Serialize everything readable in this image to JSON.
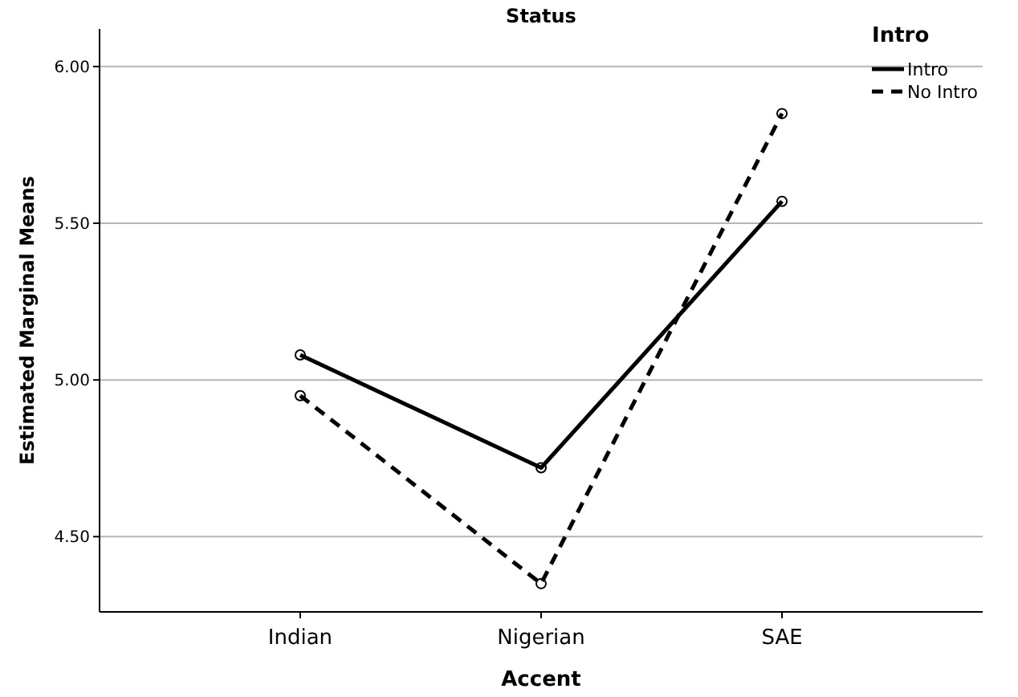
{
  "chart_data": {
    "type": "line",
    "title": "Status",
    "xlabel": "Accent",
    "ylabel": "Estimated Marginal Means",
    "legend_title": "Intro",
    "categories": [
      "Indian",
      "Nigerian",
      "SAE"
    ],
    "series": [
      {
        "name": "Intro",
        "color": "#000000",
        "line_style": "solid",
        "values": [
          5.08,
          4.72,
          5.57
        ]
      },
      {
        "name": "No Intro",
        "color": "#000000",
        "line_style": "dashed",
        "values": [
          4.95,
          4.35,
          5.85
        ]
      }
    ],
    "ylim": [
      4.26,
      6.12
    ],
    "yticks": [
      {
        "value": 4.5,
        "label": "4.50"
      },
      {
        "value": 5,
        "label": "5.00"
      },
      {
        "value": 5.5,
        "label": "5.50"
      },
      {
        "value": 6,
        "label": "6.00"
      }
    ],
    "grid": "y",
    "legend": "top right",
    "marker": "circle"
  }
}
